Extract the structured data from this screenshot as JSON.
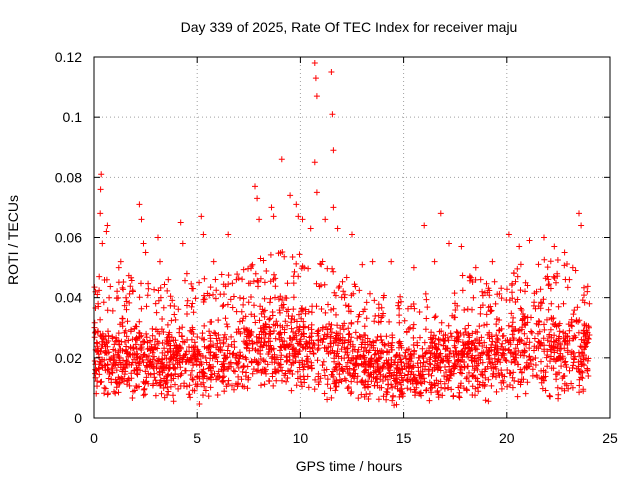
{
  "chart_data": {
    "type": "scatter",
    "title": "Day 339 of 2025, Rate Of TEC Index for receiver maju",
    "xlabel": "GPS time / hours",
    "ylabel": "ROTI / TECUs",
    "xlim": [
      0,
      25
    ],
    "ylim": [
      0,
      0.12
    ],
    "xticks": [
      0,
      5,
      10,
      15,
      20,
      25
    ],
    "xtick_labels": [
      "0",
      "5",
      "10",
      "15",
      "20",
      "25"
    ],
    "yticks": [
      0,
      0.02,
      0.04,
      0.06,
      0.08,
      0.1,
      0.12
    ],
    "ytick_labels": [
      "0",
      "0.02",
      "0.04",
      "0.06",
      "0.08",
      "0.1",
      "0.12"
    ],
    "grid": true,
    "marker": "+",
    "color": "#ff0000",
    "data_range_hours": [
      0,
      24
    ],
    "series": [
      {
        "name": "ROTI",
        "points": [
          [
            0.2,
            0.038
          ],
          [
            0.25,
            0.047
          ],
          [
            0.3,
            0.068
          ],
          [
            0.32,
            0.076
          ],
          [
            0.35,
            0.081
          ],
          [
            0.4,
            0.058
          ],
          [
            0.6,
            0.062
          ],
          [
            0.65,
            0.064
          ],
          [
            1.2,
            0.05
          ],
          [
            1.3,
            0.052
          ],
          [
            2.2,
            0.071
          ],
          [
            2.3,
            0.066
          ],
          [
            2.4,
            0.058
          ],
          [
            2.5,
            0.055
          ],
          [
            3.1,
            0.06
          ],
          [
            3.2,
            0.052
          ],
          [
            3.6,
            0.046
          ],
          [
            4.2,
            0.065
          ],
          [
            4.3,
            0.058
          ],
          [
            4.5,
            0.048
          ],
          [
            5.2,
            0.067
          ],
          [
            5.3,
            0.061
          ],
          [
            5.8,
            0.052
          ],
          [
            6.5,
            0.061
          ],
          [
            6.9,
            0.046
          ],
          [
            7.8,
            0.077
          ],
          [
            7.9,
            0.073
          ],
          [
            8.0,
            0.066
          ],
          [
            8.6,
            0.07
          ],
          [
            8.7,
            0.067
          ],
          [
            9.1,
            0.086
          ],
          [
            9.5,
            0.074
          ],
          [
            9.8,
            0.071
          ],
          [
            9.9,
            0.067
          ],
          [
            10.1,
            0.066
          ],
          [
            10.5,
            0.063
          ],
          [
            10.7,
            0.118
          ],
          [
            10.75,
            0.113
          ],
          [
            10.8,
            0.107
          ],
          [
            10.7,
            0.085
          ],
          [
            10.8,
            0.075
          ],
          [
            11.2,
            0.066
          ],
          [
            11.5,
            0.115
          ],
          [
            11.55,
            0.101
          ],
          [
            11.6,
            0.089
          ],
          [
            11.6,
            0.07
          ],
          [
            11.8,
            0.063
          ],
          [
            12.5,
            0.061
          ],
          [
            13.0,
            0.051
          ],
          [
            13.5,
            0.052
          ],
          [
            14.4,
            0.052
          ],
          [
            15.5,
            0.05
          ],
          [
            16.0,
            0.064
          ],
          [
            16.5,
            0.052
          ],
          [
            16.8,
            0.068
          ],
          [
            17.2,
            0.058
          ],
          [
            17.8,
            0.057
          ],
          [
            18.5,
            0.05
          ],
          [
            19.3,
            0.052
          ],
          [
            20.1,
            0.061
          ],
          [
            20.6,
            0.057
          ],
          [
            21.1,
            0.059
          ],
          [
            21.8,
            0.06
          ],
          [
            22.3,
            0.057
          ],
          [
            22.8,
            0.055
          ],
          [
            23.2,
            0.05
          ],
          [
            23.5,
            0.068
          ],
          [
            23.6,
            0.064
          ],
          [
            23.9,
            0.042
          ],
          [
            24.0,
            0.038
          ]
        ],
        "envelope": {
          "x": [
            0,
            1,
            2,
            3,
            4,
            5,
            6,
            7,
            8,
            9,
            10,
            11,
            12,
            13,
            14,
            15,
            16,
            17,
            18,
            19,
            20,
            21,
            22,
            23,
            24
          ],
          "upper": [
            0.036,
            0.034,
            0.036,
            0.032,
            0.034,
            0.034,
            0.036,
            0.036,
            0.042,
            0.044,
            0.044,
            0.042,
            0.036,
            0.032,
            0.03,
            0.028,
            0.03,
            0.034,
            0.036,
            0.034,
            0.038,
            0.04,
            0.042,
            0.04,
            0.036
          ],
          "lower": [
            0.006,
            0.004,
            0.005,
            0.005,
            0.005,
            0.004,
            0.005,
            0.005,
            0.006,
            0.007,
            0.007,
            0.006,
            0.005,
            0.004,
            0.004,
            0.003,
            0.004,
            0.004,
            0.005,
            0.005,
            0.005,
            0.006,
            0.006,
            0.005,
            0.004
          ]
        }
      }
    ]
  }
}
